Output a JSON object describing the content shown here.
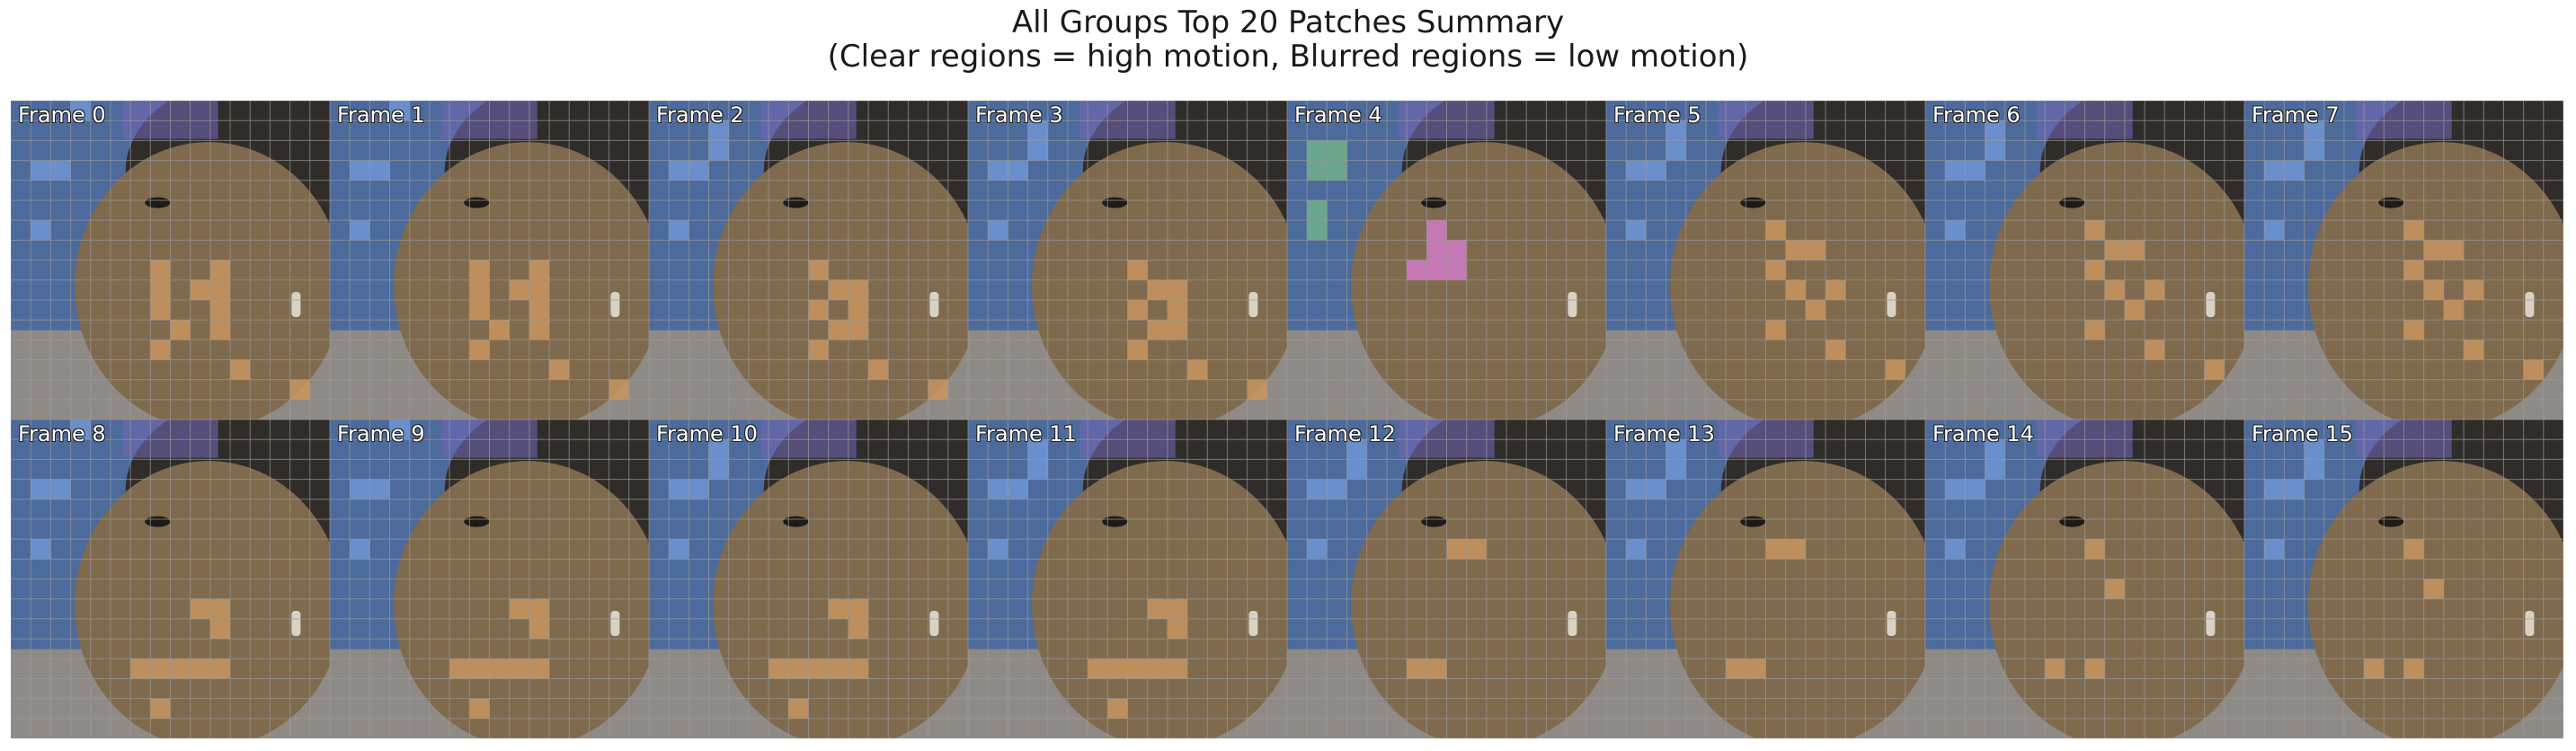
{
  "title": {
    "line1": "All Groups Top 20 Patches Summary",
    "line2": "(Clear regions = high motion, Blurred regions = low motion)"
  },
  "colors": {
    "blue_patch": "#6f95d6",
    "orange_patch": "#c9955f",
    "green_patch": "#6fb08a",
    "pink_patch": "#d27ac8",
    "grid_line": "#9a9a9a",
    "background_blue": "#4c6a9c",
    "skin": "#7f6a4d",
    "hair": "#2f2c29"
  },
  "frames": [
    {
      "label": "Frame 0"
    },
    {
      "label": "Frame 1"
    },
    {
      "label": "Frame 2"
    },
    {
      "label": "Frame 3"
    },
    {
      "label": "Frame 4"
    },
    {
      "label": "Frame 5"
    },
    {
      "label": "Frame 6"
    },
    {
      "label": "Frame 7"
    },
    {
      "label": "Frame 8"
    },
    {
      "label": "Frame 9"
    },
    {
      "label": "Frame 10"
    },
    {
      "label": "Frame 11"
    },
    {
      "label": "Frame 12"
    },
    {
      "label": "Frame 13"
    },
    {
      "label": "Frame 14"
    },
    {
      "label": "Frame 15"
    }
  ]
}
